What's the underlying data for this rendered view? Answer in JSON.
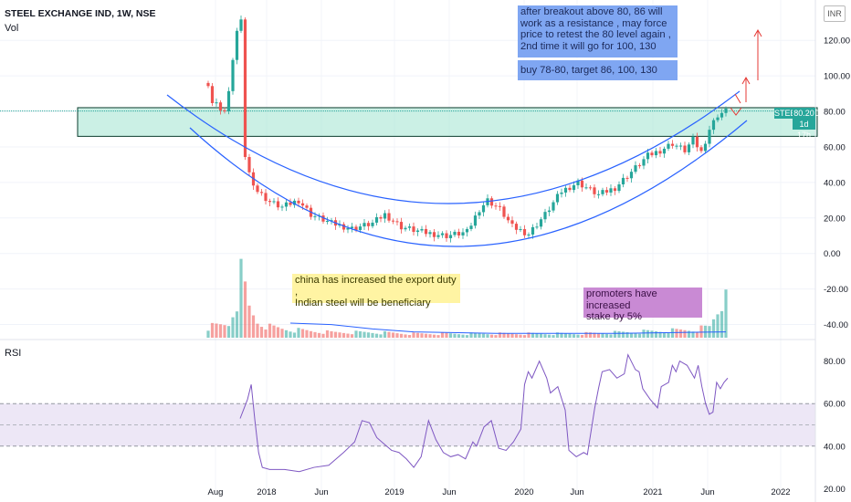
{
  "header": {
    "title": "STEEL EXCHANGE IND, 1W, NSE",
    "vol_label": "Vol",
    "rsi_label": "RSI",
    "currency": "INR"
  },
  "price_label": {
    "symbol": "STEELXIND",
    "price": "80.20",
    "countdown": "1d 17h"
  },
  "annotations": {
    "breakout": [
      "after breakout above 80, 86 will",
      "work as a resistance , may force",
      "price to retest the 80 level again ,",
      "2nd time it will go for 100, 130"
    ],
    "buy": "buy 78-80, target 86, 100, 130",
    "china": [
      "china has increased the export duty ,",
      "Indian steel will be beneficiary"
    ],
    "promoters": [
      "promoters have increased",
      "stake by 5%"
    ]
  },
  "colors": {
    "up": "#26a69a",
    "down": "#ef5350",
    "channel": "#2962ff",
    "zone_fill": "#a8e6d4",
    "rsi": "#7e57c2",
    "rsi_band": "#ede7f6"
  },
  "chart_data": [
    {
      "type": "candlestick",
      "x_ticks": [
        "Aug",
        "2018",
        "Jun",
        "2019",
        "Jun",
        "2020",
        "Jun",
        "2021",
        "Jun",
        "2022"
      ],
      "price_axis": [
        "120.00",
        "100.00",
        "80.00",
        "60.00",
        "40.00",
        "20.00",
        "0.00",
        "-20.00",
        "-40.00"
      ],
      "ylim": [
        -50,
        135
      ],
      "last_price": 80.2,
      "resistance_zone": [
        68,
        79
      ],
      "trajectory": [
        [
          0,
          96
        ],
        [
          1,
          85
        ],
        [
          2,
          84
        ],
        [
          3,
          82
        ],
        [
          4,
          80
        ],
        [
          5,
          90
        ],
        [
          6,
          110
        ],
        [
          7,
          125
        ],
        [
          8,
          130
        ],
        [
          8.5,
          75
        ],
        [
          9,
          55
        ],
        [
          10,
          45
        ],
        [
          12,
          35
        ],
        [
          15,
          29
        ],
        [
          18,
          26
        ],
        [
          22,
          30
        ],
        [
          25,
          22
        ],
        [
          30,
          17
        ],
        [
          35,
          14
        ],
        [
          40,
          17
        ],
        [
          43,
          22
        ],
        [
          47,
          15
        ],
        [
          52,
          12
        ],
        [
          58,
          10
        ],
        [
          63,
          12
        ],
        [
          66,
          25
        ],
        [
          68,
          30
        ],
        [
          71,
          25
        ],
        [
          74,
          15
        ],
        [
          78,
          11
        ],
        [
          82,
          22
        ],
        [
          86,
          35
        ],
        [
          90,
          40
        ],
        [
          95,
          33
        ],
        [
          99,
          37
        ],
        [
          103,
          46
        ],
        [
          107,
          55
        ],
        [
          110,
          58
        ],
        [
          113,
          62
        ],
        [
          116,
          58
        ],
        [
          118,
          64
        ],
        [
          120,
          57
        ],
        [
          122,
          70
        ],
        [
          124,
          78
        ],
        [
          126,
          80.2
        ]
      ],
      "volume": [
        [
          0,
          8
        ],
        [
          5,
          10
        ],
        [
          7,
          30
        ],
        [
          8,
          45
        ],
        [
          9,
          35
        ],
        [
          10,
          22
        ],
        [
          12,
          12
        ],
        [
          15,
          8
        ],
        [
          20,
          6
        ],
        [
          25,
          5
        ],
        [
          30,
          4
        ],
        [
          40,
          4
        ],
        [
          50,
          3
        ],
        [
          60,
          3
        ],
        [
          70,
          3
        ],
        [
          80,
          3
        ],
        [
          90,
          3
        ],
        [
          100,
          4
        ],
        [
          110,
          5
        ],
        [
          118,
          6
        ],
        [
          122,
          8
        ],
        [
          124,
          20
        ],
        [
          125,
          26
        ],
        [
          126,
          55
        ]
      ],
      "volume_ma": [
        [
          20,
          10
        ],
        [
          30,
          9
        ],
        [
          40,
          6
        ],
        [
          50,
          4
        ],
        [
          70,
          3
        ],
        [
          100,
          3
        ],
        [
          126,
          4
        ]
      ]
    },
    {
      "type": "line",
      "name": "RSI",
      "y_ticks": [
        "80.00",
        "60.00",
        "40.00",
        "20.00"
      ],
      "ylim": [
        18,
        88
      ],
      "band": [
        40,
        60
      ],
      "midline": 50,
      "values": [
        [
          0,
          53
        ],
        [
          2,
          62
        ],
        [
          3,
          69
        ],
        [
          4,
          52
        ],
        [
          5,
          37
        ],
        [
          6,
          30
        ],
        [
          8,
          29
        ],
        [
          12,
          29
        ],
        [
          16,
          28
        ],
        [
          20,
          30
        ],
        [
          24,
          31
        ],
        [
          28,
          37
        ],
        [
          31,
          42
        ],
        [
          33,
          52
        ],
        [
          35,
          51
        ],
        [
          37,
          44
        ],
        [
          39,
          41
        ],
        [
          41,
          38
        ],
        [
          43,
          37
        ],
        [
          45,
          34
        ],
        [
          47,
          30
        ],
        [
          49,
          35
        ],
        [
          51,
          52
        ],
        [
          53,
          43
        ],
        [
          55,
          37
        ],
        [
          57,
          35
        ],
        [
          59,
          36
        ],
        [
          61,
          34
        ],
        [
          63,
          42
        ],
        [
          64,
          40
        ],
        [
          66,
          49
        ],
        [
          68,
          52
        ],
        [
          70,
          39
        ],
        [
          72,
          38
        ],
        [
          74,
          42
        ],
        [
          76,
          48
        ],
        [
          77,
          69
        ],
        [
          78,
          75
        ],
        [
          79,
          72
        ],
        [
          81,
          80
        ],
        [
          83,
          72
        ],
        [
          84,
          65
        ],
        [
          86,
          68
        ],
        [
          88,
          57
        ],
        [
          89,
          38
        ],
        [
          91,
          35
        ],
        [
          93,
          37
        ],
        [
          94,
          36
        ],
        [
          96,
          58
        ],
        [
          97,
          67
        ],
        [
          98,
          75
        ],
        [
          100,
          76
        ],
        [
          102,
          72
        ],
        [
          104,
          74
        ],
        [
          105,
          83
        ],
        [
          107,
          76
        ],
        [
          108,
          75
        ],
        [
          109,
          67
        ],
        [
          111,
          62
        ],
        [
          113,
          58
        ],
        [
          114,
          68
        ],
        [
          116,
          70
        ],
        [
          117,
          78
        ],
        [
          118,
          75
        ],
        [
          119,
          80
        ],
        [
          121,
          78
        ],
        [
          122,
          75
        ],
        [
          123,
          72
        ],
        [
          124,
          78
        ],
        [
          125,
          68
        ],
        [
          126,
          60
        ],
        [
          127,
          55
        ],
        [
          128,
          56
        ],
        [
          129,
          70
        ],
        [
          130,
          67
        ],
        [
          131,
          70
        ],
        [
          132,
          72
        ]
      ]
    }
  ]
}
